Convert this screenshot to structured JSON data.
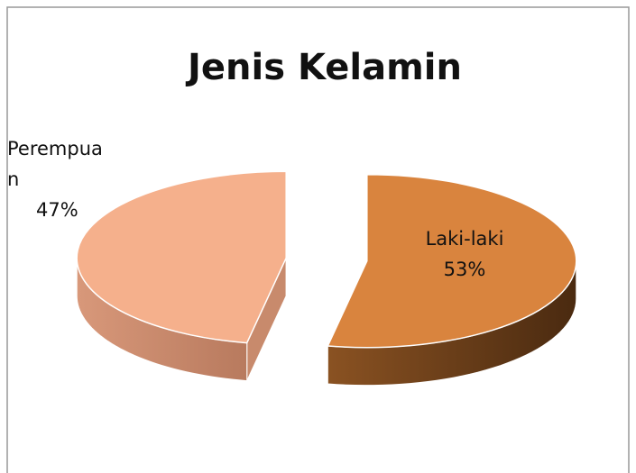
{
  "chart_data": {
    "type": "pie",
    "title": "Jenis Kelamin",
    "categories": [
      "Laki-laki",
      "Perempuan"
    ],
    "values": [
      53,
      47
    ],
    "value_labels": [
      "53%",
      "47%"
    ],
    "colors": [
      "#d9843e",
      "#f5b08c"
    ]
  }
}
